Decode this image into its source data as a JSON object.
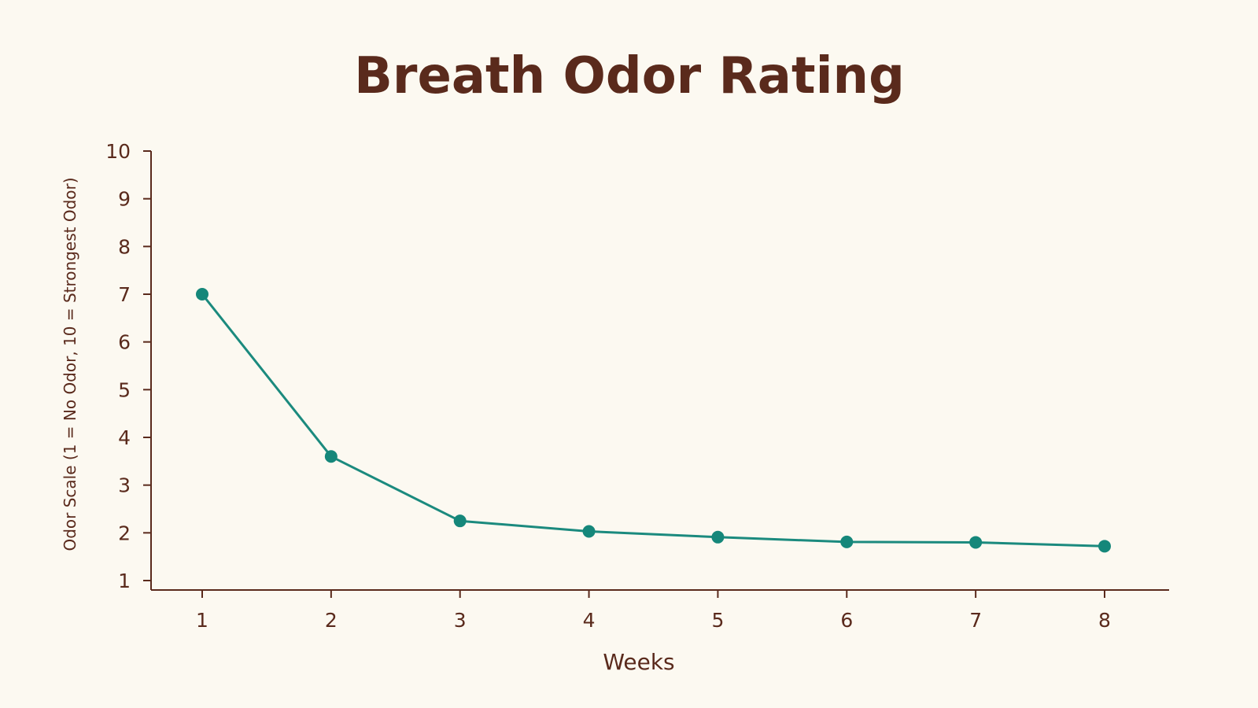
{
  "chart_data": {
    "type": "line",
    "title": "Breath Odor Rating",
    "xlabel": "Weeks",
    "ylabel": "Odor Scale (1 = No Odor, 10 = Strongest Odor)",
    "x": [
      1,
      2,
      3,
      4,
      5,
      6,
      7,
      8
    ],
    "series": [
      {
        "values": [
          7.0,
          3.6,
          2.25,
          2.03,
          1.91,
          1.81,
          1.8,
          1.72
        ]
      }
    ],
    "ylim": [
      1,
      10
    ],
    "yticks": [
      1,
      2,
      3,
      4,
      5,
      6,
      7,
      8,
      9,
      10
    ],
    "xticks": [
      1,
      2,
      3,
      4,
      5,
      6,
      7,
      8
    ],
    "grid": false,
    "legend": "none"
  },
  "colors": {
    "background": "#fcf9f1",
    "text": "#5a2a1c",
    "axis": "#5a2a1c",
    "line": "#1b8a7e",
    "marker": "#15877a"
  }
}
